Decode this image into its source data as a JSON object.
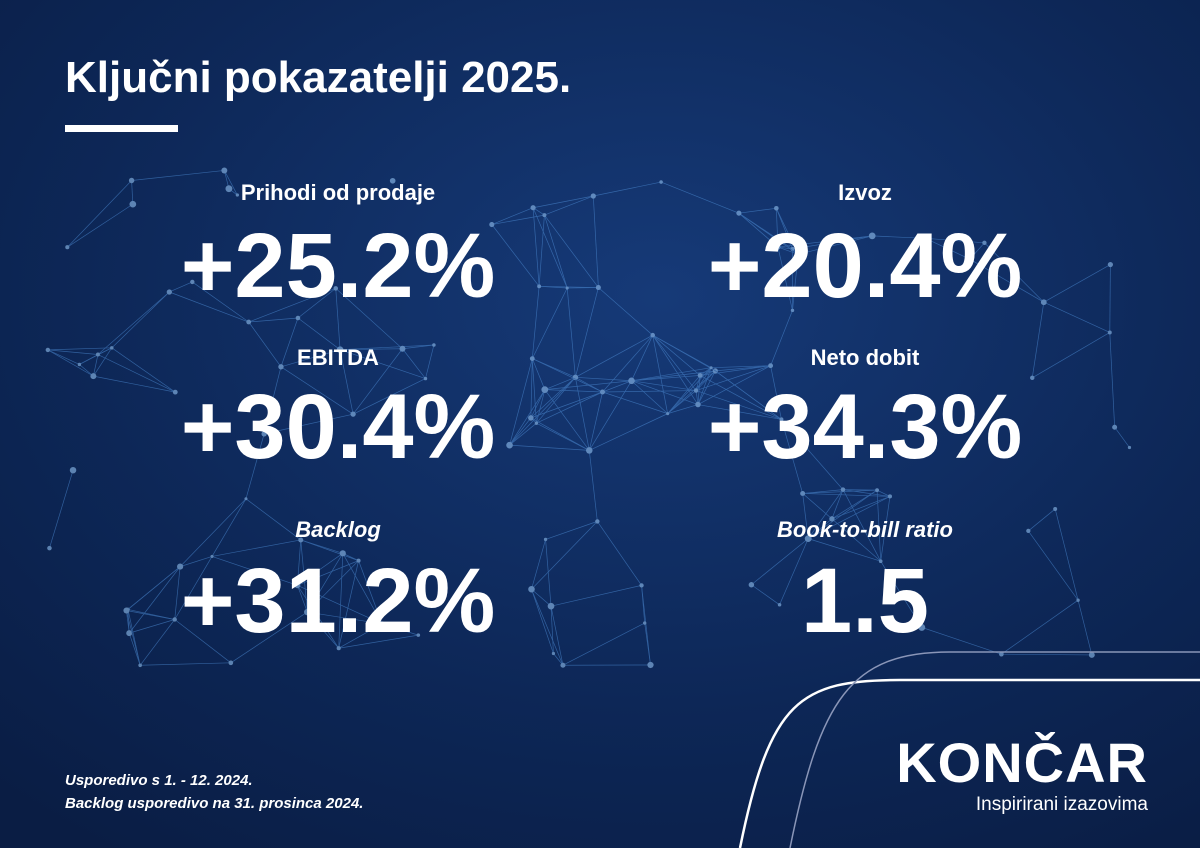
{
  "header": {
    "title": "Ključni pokazatelji 2025."
  },
  "metrics": [
    {
      "label": "Prihodi od prodaje",
      "value": "+25.2%"
    },
    {
      "label": "Izvoz",
      "value": "+20.4%"
    },
    {
      "label": "EBITDA",
      "value": "+30.4%"
    },
    {
      "label": "Neto dobit",
      "value": "+34.3%"
    },
    {
      "label": "Backlog",
      "value": "+31.2%"
    },
    {
      "label": "Book-to-bill ratio",
      "value": "1.5"
    }
  ],
  "footnotes": [
    "Usporedivo s 1. - 12. 2024.",
    "Backlog usporedivo na 31. prosinca 2024."
  ],
  "brand": {
    "name": "KONČAR",
    "tagline": "Inspirirani izazovima"
  }
}
